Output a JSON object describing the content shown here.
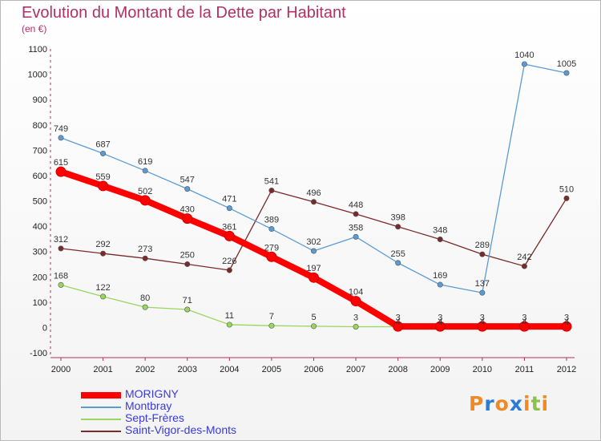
{
  "chart_data": {
    "type": "line",
    "title": "Evolution du Montant de la Dette par Habitant",
    "subtitle": "(en €)",
    "categories": [
      "2000",
      "2001",
      "2002",
      "2003",
      "2004",
      "2005",
      "2006",
      "2007",
      "2008",
      "2009",
      "2010",
      "2011",
      "2012"
    ],
    "ylim": [
      -100,
      1100
    ],
    "yticks": [
      -100,
      0,
      100,
      200,
      300,
      400,
      500,
      600,
      700,
      800,
      900,
      1000,
      1100
    ],
    "grid": false,
    "legend_position": "bottom-left",
    "series": [
      {
        "name": "MORIGNY",
        "color": "#ff0000",
        "values": [
          615,
          559,
          502,
          430,
          361,
          279,
          197,
          104,
          4,
          4,
          4,
          4,
          4
        ]
      },
      {
        "name": "Montbray",
        "color": "#5b9bd5",
        "values": [
          749,
          687,
          619,
          547,
          471,
          389,
          302,
          358,
          255,
          169,
          137,
          1040,
          1005
        ]
      },
      {
        "name": "Sept-Frères",
        "color": "#99d65e",
        "values": [
          168,
          122,
          80,
          71,
          11,
          7,
          5,
          3,
          3,
          3,
          3,
          3,
          3
        ]
      },
      {
        "name": "Saint-Vigor-des-Monts",
        "color": "#7a2a2a",
        "values": [
          312,
          292,
          273,
          250,
          226,
          541,
          496,
          448,
          398,
          348,
          289,
          242,
          510
        ]
      }
    ]
  },
  "logo": {
    "text": "Proxiti"
  },
  "legend_text_color": "#3a3adb"
}
